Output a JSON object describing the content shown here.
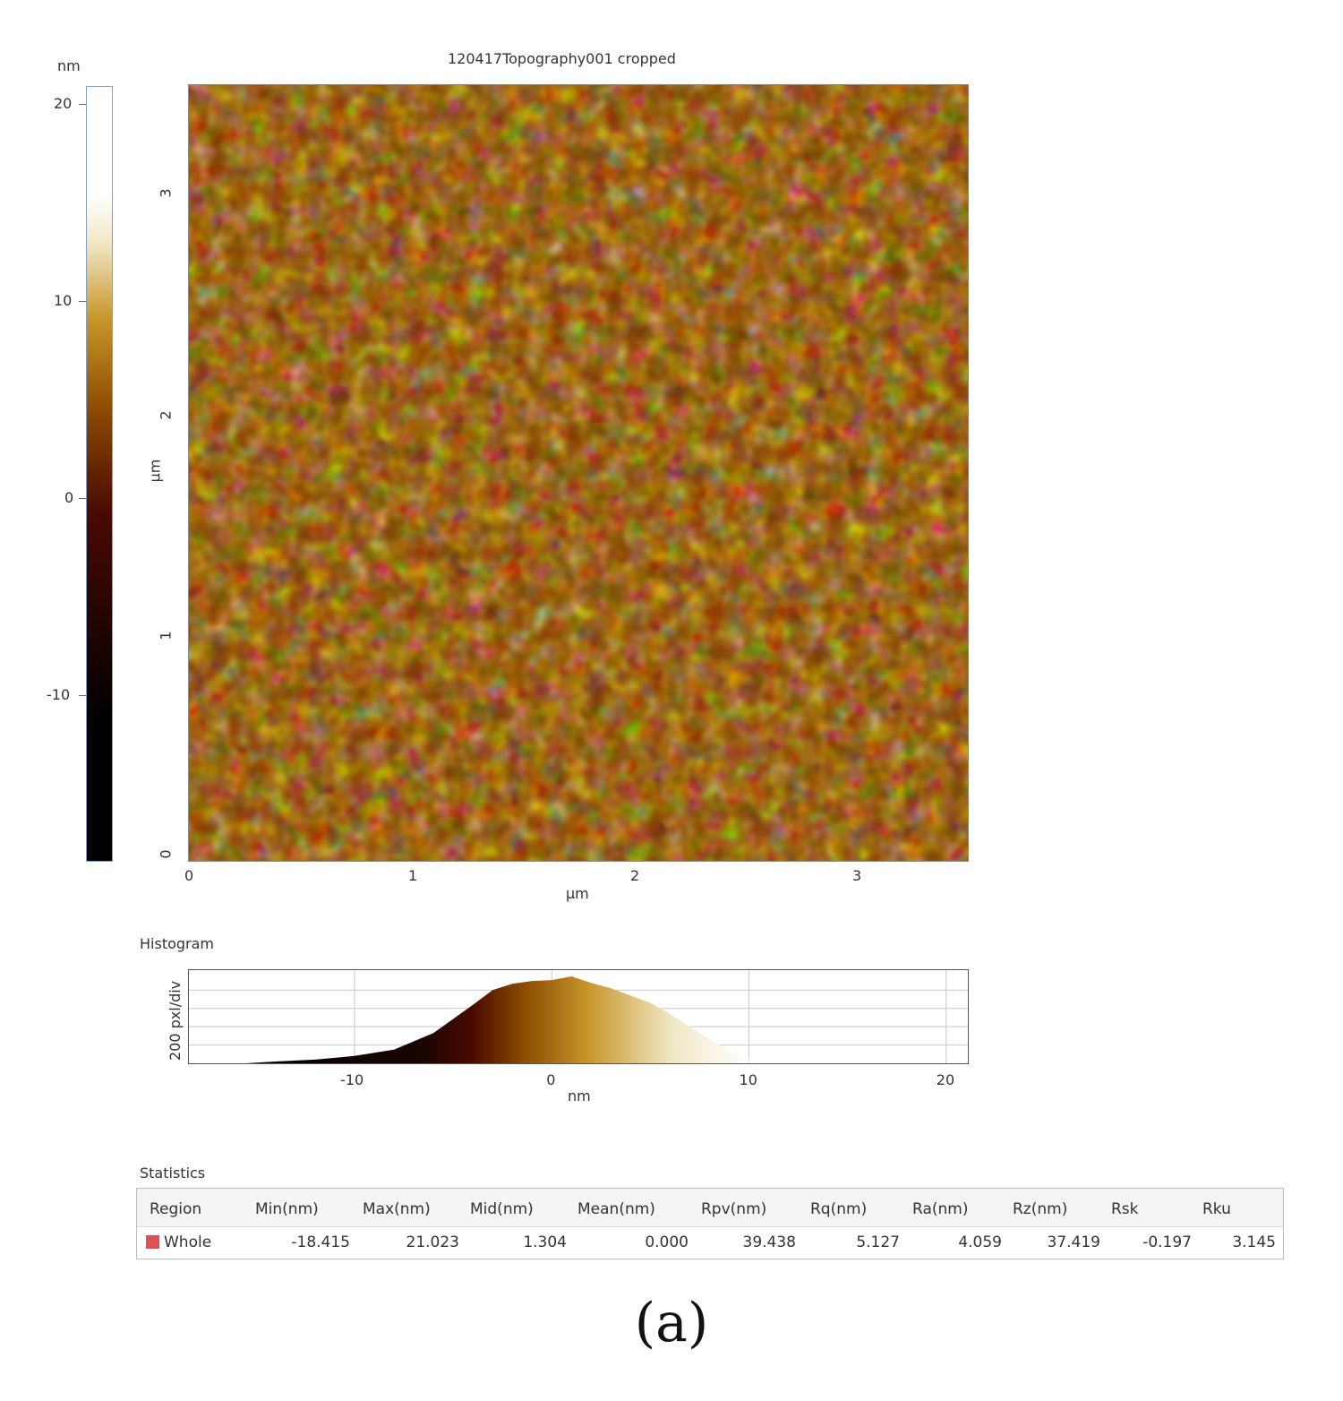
{
  "image": {
    "title": "120417Topography001 cropped",
    "colorbar": {
      "unit": "nm",
      "ticks": [
        "20",
        "10",
        "0",
        "-10"
      ],
      "range": [
        -18.415,
        21.023
      ],
      "colors": [
        "#000000",
        "#4a0a00",
        "#8a4a00",
        "#c8962a",
        "#f2e8c8",
        "#ffffff"
      ]
    },
    "x_axis": {
      "label": "µm",
      "ticks": [
        "0",
        "1",
        "2",
        "3"
      ]
    },
    "y_axis": {
      "label": "µm",
      "ticks": [
        "0",
        "1",
        "2",
        "3"
      ]
    }
  },
  "histogram": {
    "title": "Histogram",
    "ylabel": "200 pxl/div",
    "xlabel": "nm",
    "x_ticks": [
      "-10",
      "0",
      "10",
      "20"
    ],
    "xlim": [
      -18.4,
      21.1
    ]
  },
  "chart_data": {
    "type": "area",
    "title": "Histogram",
    "xlabel": "nm",
    "ylabel": "200 pxl/div",
    "xlim": [
      -18.4,
      21.1
    ],
    "ylim": [
      0,
      960
    ],
    "x": [
      -15.5,
      -14,
      -12,
      -10,
      -8,
      -6,
      -4,
      -3,
      -2,
      -1,
      0,
      1,
      2,
      3,
      4,
      5,
      6,
      7,
      8,
      9,
      10
    ],
    "y": [
      0,
      20,
      40,
      80,
      150,
      330,
      640,
      800,
      870,
      900,
      910,
      950,
      880,
      820,
      740,
      660,
      540,
      400,
      260,
      140,
      60
    ]
  },
  "statistics": {
    "title": "Statistics",
    "columns": [
      "Region",
      "Min(nm)",
      "Max(nm)",
      "Mid(nm)",
      "Mean(nm)",
      "Rpv(nm)",
      "Rq(nm)",
      "Ra(nm)",
      "Rz(nm)",
      "Rsk",
      "Rku"
    ],
    "rows": [
      {
        "color": "#e05050",
        "values": [
          "Whole",
          "-18.415",
          "21.023",
          "1.304",
          "0.000",
          "39.438",
          "5.127",
          "4.059",
          "37.419",
          "-0.197",
          "3.145"
        ]
      }
    ]
  },
  "caption": "(a)"
}
